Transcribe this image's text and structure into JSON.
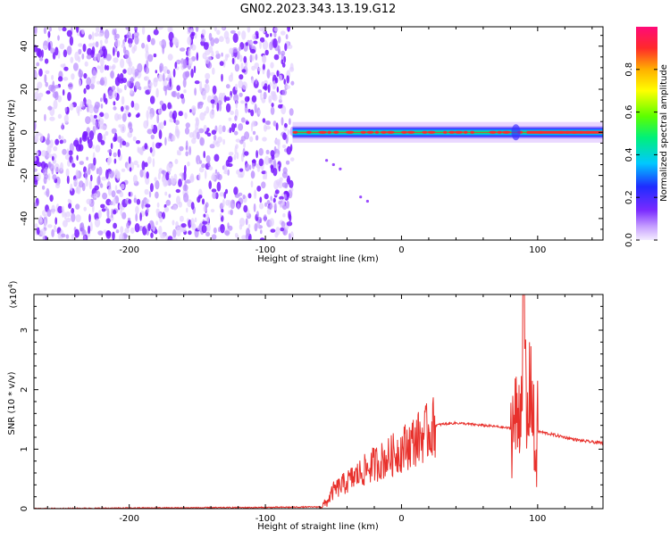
{
  "title": "GN02.2023.343.13.19.G12",
  "colors": {
    "snr_line": "#e8312c",
    "scatter_base": "#9b4dff",
    "axis": "#000000"
  },
  "chart_data": [
    {
      "type": "heatmap",
      "title": "GN02.2023.343.13.19.G12",
      "xlabel": "Height of straight line (km)",
      "ylabel": "Frequency (Hz)",
      "xlim": [
        -270,
        148
      ],
      "ylim": [
        -50,
        49
      ],
      "x_ticks": [
        -200,
        -100,
        0,
        100
      ],
      "x_tick_labels": [
        "-200",
        "-100",
        "0",
        "100"
      ],
      "y_ticks": [
        -40,
        -20,
        0,
        20,
        40
      ],
      "y_tick_labels": [
        "-40",
        "-20",
        "0",
        "20",
        "40"
      ],
      "colorbar": {
        "label": "Normalized spectral amplitude",
        "range": [
          0,
          1
        ],
        "ticks": [
          0.0,
          0.2,
          0.4,
          0.6,
          0.8
        ],
        "tick_labels": [
          "0.0",
          "0.2",
          "0.4",
          "0.6",
          "0.8"
        ]
      },
      "regions": [
        {
          "name": "noise",
          "x_range": [
            -270,
            -80
          ],
          "freq_range": [
            -50,
            49
          ],
          "amplitude_range": [
            0.0,
            0.15
          ]
        },
        {
          "name": "signal-band",
          "x_range": [
            -80,
            148
          ],
          "center_freq": 0,
          "half_width_hz": 3,
          "peak_amplitude": 1.0
        }
      ],
      "grid": false
    },
    {
      "type": "line",
      "xlabel": "Height of straight line (km)",
      "ylabel": "SNR (10 * v/v)",
      "scale_label": "(x10",
      "scale_exponent": "4",
      "scale_suffix": ")",
      "xlim": [
        -270,
        148
      ],
      "ylim": [
        0,
        3.6
      ],
      "x_ticks": [
        -200,
        -100,
        0,
        100
      ],
      "x_tick_labels": [
        "-200",
        "-100",
        "0",
        "100"
      ],
      "y_ticks": [
        0,
        1,
        2,
        3
      ],
      "y_tick_labels": [
        "0",
        "1",
        "2",
        "3"
      ],
      "series": [
        {
          "x": [
            -270,
            -200,
            -100,
            -60,
            -55,
            -50,
            -40,
            -30,
            -20,
            -10,
            0,
            10,
            20,
            25,
            30,
            40,
            50,
            60,
            70,
            80,
            85,
            88,
            90,
            92,
            95,
            98,
            100,
            110,
            120,
            130,
            140,
            148
          ],
          "values": [
            0.0,
            0.01,
            0.02,
            0.03,
            0.1,
            0.3,
            0.45,
            0.6,
            0.75,
            0.85,
            1.0,
            1.15,
            1.3,
            1.4,
            1.42,
            1.44,
            1.42,
            1.4,
            1.38,
            1.35,
            1.5,
            1.9,
            3.6,
            1.2,
            2.3,
            0.8,
            1.3,
            1.25,
            1.2,
            1.15,
            1.12,
            1.1
          ]
        }
      ],
      "grid": false
    }
  ]
}
